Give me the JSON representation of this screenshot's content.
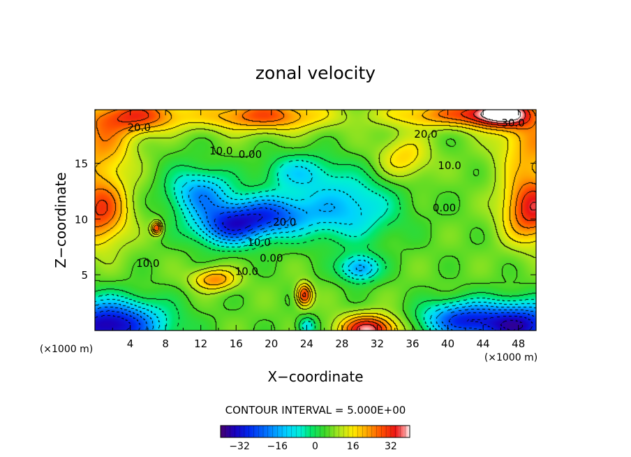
{
  "chart_data": {
    "type": "heatmap",
    "title": "zonal velocity",
    "xlabel": "X−coordinate",
    "ylabel": "Z−coordinate",
    "x_unit": "(×1000 m)",
    "y_unit": "(×1000 m)",
    "xlim": [
      0,
      50
    ],
    "ylim": [
      0,
      19.8
    ],
    "x_ticks": [
      "4",
      "8",
      "12",
      "16",
      "20",
      "24",
      "28",
      "32",
      "36",
      "40",
      "44",
      "48"
    ],
    "y_ticks": [
      "5",
      "10",
      "15"
    ],
    "x_tick_values": [
      4,
      8,
      12,
      16,
      20,
      24,
      28,
      32,
      36,
      40,
      44,
      48
    ],
    "y_tick_values": [
      5,
      10,
      15
    ],
    "contour_interval_text": "CONTOUR INTERVAL = 5.000E+00",
    "contour_interval": 5,
    "negative_contours_dashed": true,
    "colorbar": {
      "range": [
        -40,
        40
      ],
      "ticks": [
        "−32",
        "−16",
        "0",
        "16",
        "32"
      ],
      "tick_values": [
        -32,
        -16,
        0,
        16,
        32
      ]
    },
    "contour_labels": [
      {
        "text": "20.0",
        "x": 5.0,
        "z": 18.2
      },
      {
        "text": "10.0",
        "x": 14.3,
        "z": 16.1
      },
      {
        "text": "0.00",
        "x": 17.6,
        "z": 15.8
      },
      {
        "text": "20.0",
        "x": 37.5,
        "z": 17.6
      },
      {
        "text": "30.0",
        "x": 47.4,
        "z": 18.6
      },
      {
        "text": "10.0",
        "x": 40.2,
        "z": 14.8
      },
      {
        "text": "0.00",
        "x": 39.6,
        "z": 11.0
      },
      {
        "text": "20.0",
        "x": 21.5,
        "z": 9.7
      },
      {
        "text": "10.0",
        "x": 18.6,
        "z": 7.9
      },
      {
        "text": "0.00",
        "x": 20.0,
        "z": 6.5
      },
      {
        "text": "10.0",
        "x": 6.0,
        "z": 6.0
      },
      {
        "text": "10.0",
        "x": 17.2,
        "z": 5.3
      }
    ],
    "field_centers": [
      {
        "x": 0.5,
        "z": 10.8,
        "value": 30,
        "sx": 3.2,
        "sz": 3.2
      },
      {
        "x": 49.5,
        "z": 11.0,
        "value": 34,
        "sx": 3.2,
        "sz": 3.0
      },
      {
        "x": 0.5,
        "z": 17.0,
        "value": 22,
        "sx": 4.0,
        "sz": 3.0
      },
      {
        "x": 49.5,
        "z": 17.0,
        "value": 22,
        "sx": 4.0,
        "sz": 3.0
      },
      {
        "x": 5.0,
        "z": 19.3,
        "value": 28,
        "sx": 5.0,
        "sz": 1.5
      },
      {
        "x": 19.0,
        "z": 19.3,
        "value": 28,
        "sx": 7.0,
        "sz": 1.4
      },
      {
        "x": 40.0,
        "z": 19.4,
        "value": 24,
        "sx": 7.0,
        "sz": 1.2
      },
      {
        "x": 46.0,
        "z": 19.5,
        "value": 38,
        "sx": 3.5,
        "sz": 1.2
      },
      {
        "x": 15.2,
        "z": 9.4,
        "value": -24,
        "sx": 4.0,
        "sz": 1.8
      },
      {
        "x": 20.0,
        "z": 10.4,
        "value": -20,
        "sx": 4.5,
        "sz": 1.8
      },
      {
        "x": 12.0,
        "z": 12.3,
        "value": -16,
        "sx": 3.5,
        "sz": 2.0
      },
      {
        "x": 28.5,
        "z": 11.0,
        "value": -13,
        "sx": 5.5,
        "sz": 3.0
      },
      {
        "x": 30.0,
        "z": 5.6,
        "value": -17,
        "sx": 2.2,
        "sz": 1.2
      },
      {
        "x": 23.0,
        "z": 14.2,
        "value": -8,
        "sx": 4.0,
        "sz": 1.6
      },
      {
        "x": 1.5,
        "z": 0.5,
        "value": -36,
        "sx": 6.0,
        "sz": 2.2
      },
      {
        "x": 48.0,
        "z": 0.5,
        "value": -34,
        "sx": 5.5,
        "sz": 2.0
      },
      {
        "x": 41.0,
        "z": 1.0,
        "value": -20,
        "sx": 4.0,
        "sz": 1.6
      },
      {
        "x": 31.0,
        "z": 0.1,
        "value": 38,
        "sx": 3.2,
        "sz": 1.3
      },
      {
        "x": 23.7,
        "z": 3.2,
        "value": 32,
        "sx": 0.9,
        "sz": 1.0
      },
      {
        "x": 24.0,
        "z": 0.4,
        "value": -10,
        "sx": 1.0,
        "sz": 0.8
      },
      {
        "x": 13.5,
        "z": 4.6,
        "value": 24,
        "sx": 2.5,
        "sz": 1.0
      },
      {
        "x": 7.0,
        "z": 9.2,
        "value": 30,
        "sx": 0.6,
        "sz": 0.6
      },
      {
        "x": 10.0,
        "z": 14.5,
        "value": 4,
        "sx": 3.0,
        "sz": 3.0
      },
      {
        "x": 35.0,
        "z": 15.5,
        "value": 18,
        "sx": 3.0,
        "sz": 2.0
      }
    ]
  }
}
